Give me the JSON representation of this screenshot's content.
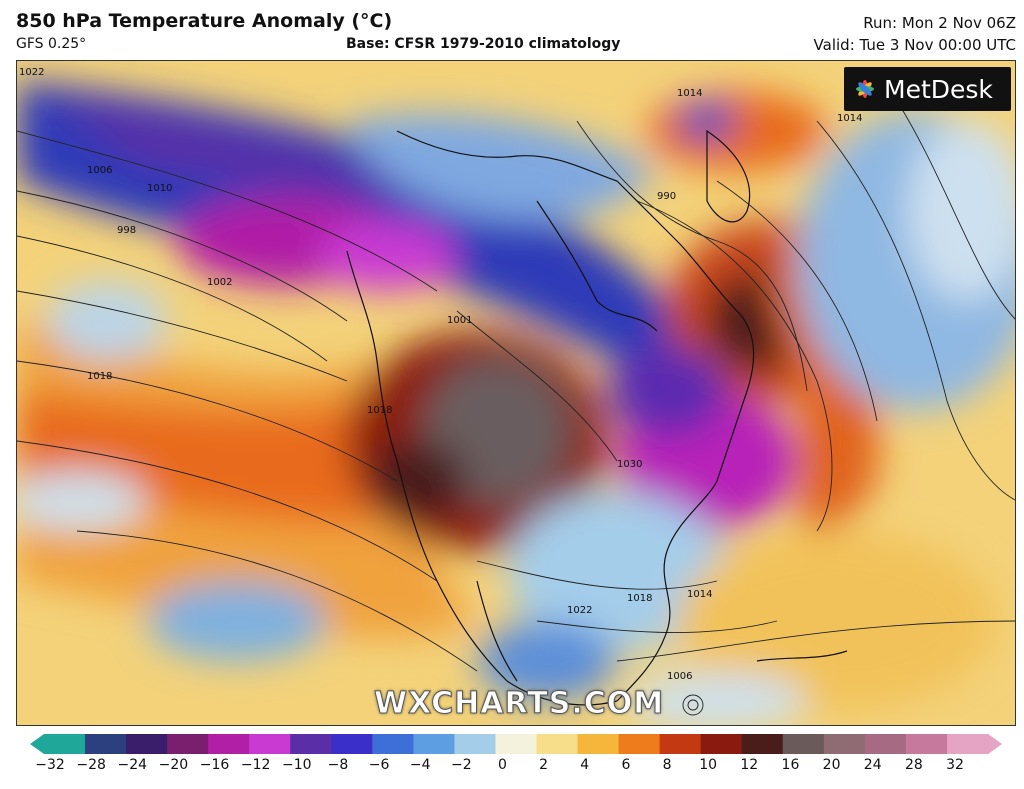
{
  "header": {
    "title": "850 hPa Temperature Anomaly (°C)",
    "model": "GFS 0.25°",
    "base": "Base: CFSR 1979-2010 climatology",
    "run": "Run: Mon 2 Nov 06Z",
    "valid": "Valid: Tue 3 Nov 00:00 UTC"
  },
  "logo": {
    "text": "MetDesk"
  },
  "watermark": "WXCHARTS.COM",
  "isobar_labels": [
    "1022",
    "1014",
    "1006",
    "1010",
    "998",
    "1002",
    "1018",
    "1014",
    "990",
    "1001",
    "1018",
    "1030",
    "1022",
    "1018",
    "1014",
    "1006"
  ],
  "colorbar": {
    "ticks": [
      "−32",
      "−28",
      "−24",
      "−20",
      "−16",
      "−12",
      "−10",
      "−8",
      "−6",
      "−4",
      "−2",
      "0",
      "2",
      "4",
      "6",
      "8",
      "10",
      "12",
      "16",
      "20",
      "24",
      "28",
      "32"
    ],
    "colors": [
      "#1fa89a",
      "#2c3f7f",
      "#3a1e6b",
      "#7a1f6e",
      "#b01fa6",
      "#c93ad3",
      "#5a2ea6",
      "#3b2fc9",
      "#3e6fd8",
      "#5d9de2",
      "#a4cdea",
      "#f4f1dc",
      "#f6de8a",
      "#f6b63c",
      "#ee7b1c",
      "#c33a12",
      "#8a1a10",
      "#4a1d1a",
      "#6a5a5a",
      "#8f6b74",
      "#a66a83",
      "#c7789d",
      "#e5a4c4"
    ]
  }
}
